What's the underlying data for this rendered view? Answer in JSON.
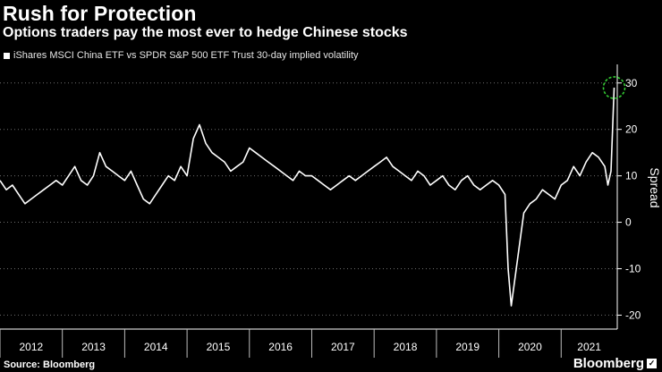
{
  "header": {
    "title": "Rush for Protection",
    "subtitle": "Options traders pay the most ever to hedge Chinese stocks"
  },
  "legend": {
    "label": "iShares MSCI China ETF vs SPDR S&P 500 ETF Trust 30-day implied volatility"
  },
  "footer": {
    "source": "Source: Bloomberg",
    "brand": "Bloomberg"
  },
  "colors": {
    "background": "#000000",
    "line": "#ffffff",
    "highlight_circle": "#33cc33"
  },
  "chart_data": {
    "type": "line",
    "title": "Rush for Protection",
    "subtitle": "Options traders pay the most ever to hedge Chinese stocks",
    "ylabel": "Spread",
    "ylim": [
      -23,
      34
    ],
    "yticks": [
      30,
      20,
      10,
      0,
      -10,
      -20
    ],
    "y_axis_side": "right",
    "xlim": [
      2012.0,
      2021.9
    ],
    "xticks": [
      "2012",
      "2013",
      "2014",
      "2015",
      "2016",
      "2017",
      "2018",
      "2019",
      "2020",
      "2021"
    ],
    "grid": "horizontal-dotted",
    "annotation": "dashed circle around latest peak",
    "series": [
      {
        "name": "iShares MSCI China ETF vs SPDR S&P 500 ETF Trust 30-day implied volatility",
        "x": [
          2012.0,
          2012.1,
          2012.2,
          2012.3,
          2012.4,
          2012.5,
          2012.6,
          2012.7,
          2012.8,
          2012.9,
          2013.0,
          2013.1,
          2013.2,
          2013.3,
          2013.4,
          2013.5,
          2013.6,
          2013.7,
          2013.8,
          2013.9,
          2014.0,
          2014.1,
          2014.2,
          2014.3,
          2014.4,
          2014.5,
          2014.6,
          2014.7,
          2014.8,
          2014.9,
          2015.0,
          2015.1,
          2015.2,
          2015.3,
          2015.4,
          2015.5,
          2015.6,
          2015.7,
          2015.8,
          2015.9,
          2016.0,
          2016.1,
          2016.2,
          2016.3,
          2016.4,
          2016.5,
          2016.6,
          2016.7,
          2016.8,
          2016.9,
          2017.0,
          2017.1,
          2017.2,
          2017.3,
          2017.4,
          2017.5,
          2017.6,
          2017.7,
          2017.8,
          2017.9,
          2018.0,
          2018.1,
          2018.2,
          2018.3,
          2018.4,
          2018.5,
          2018.6,
          2018.7,
          2018.8,
          2018.9,
          2019.0,
          2019.1,
          2019.2,
          2019.3,
          2019.4,
          2019.5,
          2019.6,
          2019.7,
          2019.8,
          2019.9,
          2020.0,
          2020.1,
          2020.15,
          2020.2,
          2020.3,
          2020.4,
          2020.5,
          2020.6,
          2020.7,
          2020.8,
          2020.9,
          2021.0,
          2021.1,
          2021.2,
          2021.3,
          2021.4,
          2021.5,
          2021.6,
          2021.7,
          2021.75,
          2021.8,
          2021.85
        ],
        "values": [
          9,
          7,
          8,
          6,
          4,
          5,
          6,
          7,
          8,
          9,
          8,
          10,
          12,
          9,
          8,
          10,
          15,
          12,
          11,
          10,
          9,
          11,
          8,
          5,
          4,
          6,
          8,
          10,
          9,
          12,
          10,
          18,
          21,
          17,
          15,
          14,
          13,
          11,
          12,
          13,
          16,
          15,
          14,
          13,
          12,
          11,
          10,
          9,
          11,
          10,
          10,
          9,
          8,
          7,
          8,
          9,
          10,
          9,
          10,
          11,
          12,
          13,
          14,
          12,
          11,
          10,
          9,
          11,
          10,
          8,
          9,
          10,
          8,
          7,
          9,
          10,
          8,
          7,
          8,
          9,
          8,
          6,
          -10,
          -18,
          -8,
          2,
          4,
          5,
          7,
          6,
          5,
          8,
          9,
          12,
          10,
          13,
          15,
          14,
          12,
          8,
          11,
          29
        ]
      }
    ]
  }
}
